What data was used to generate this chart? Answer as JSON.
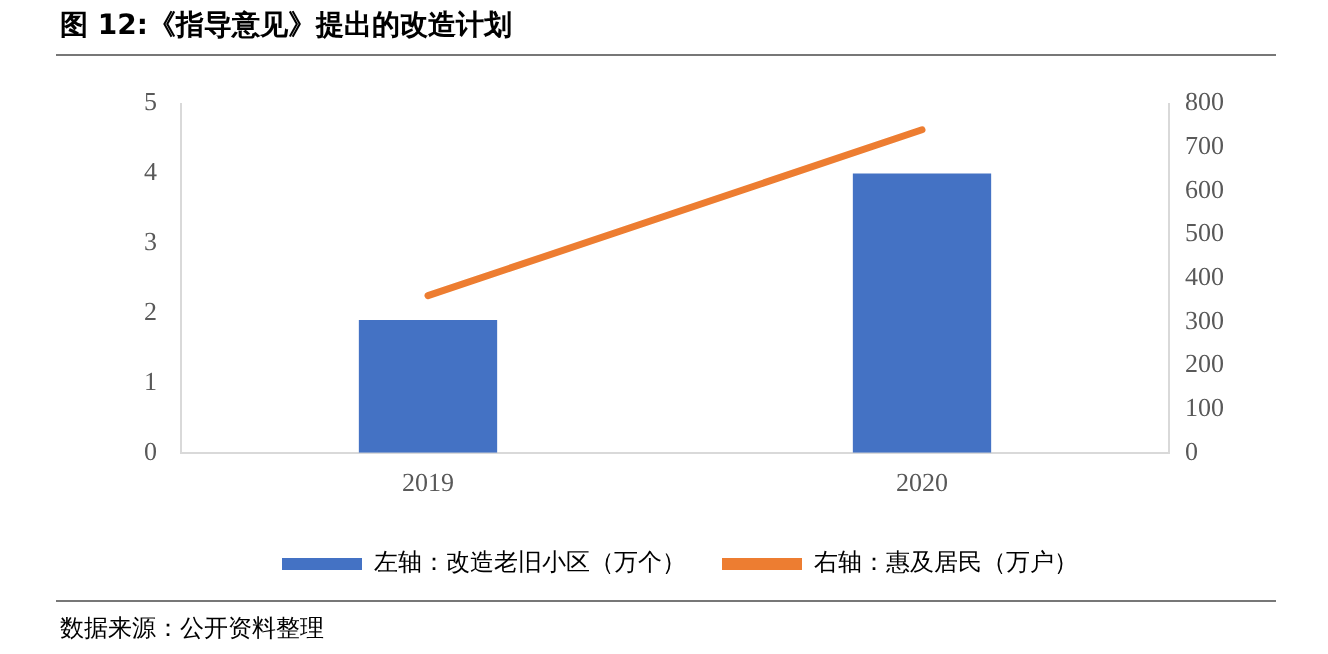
{
  "chart_data": {
    "type": "bar",
    "title": "图 12:《指导意见》提出的改造计划",
    "categories": [
      "2019",
      "2020"
    ],
    "series": [
      {
        "name": "左轴：改造老旧小区（万个）",
        "color": "#4472c4",
        "values": [
          1.9,
          4.0
        ]
      },
      {
        "name": "右轴：惠及居民（万户）",
        "type": "line",
        "axis": "y2",
        "color": "#ed7d31",
        "values": [
          360,
          740
        ]
      }
    ],
    "ylim": [
      0,
      5
    ],
    "yticks": [
      0,
      1,
      2,
      3,
      4,
      5
    ],
    "y2lim": [
      0,
      800
    ],
    "y2ticks": [
      0,
      100,
      200,
      300,
      400,
      500,
      600,
      700,
      800
    ],
    "grid": false,
    "legend": "bottom",
    "marker": "none",
    "line_style": "solid",
    "annotations": [
      "数据来源：公开资料整理"
    ]
  }
}
